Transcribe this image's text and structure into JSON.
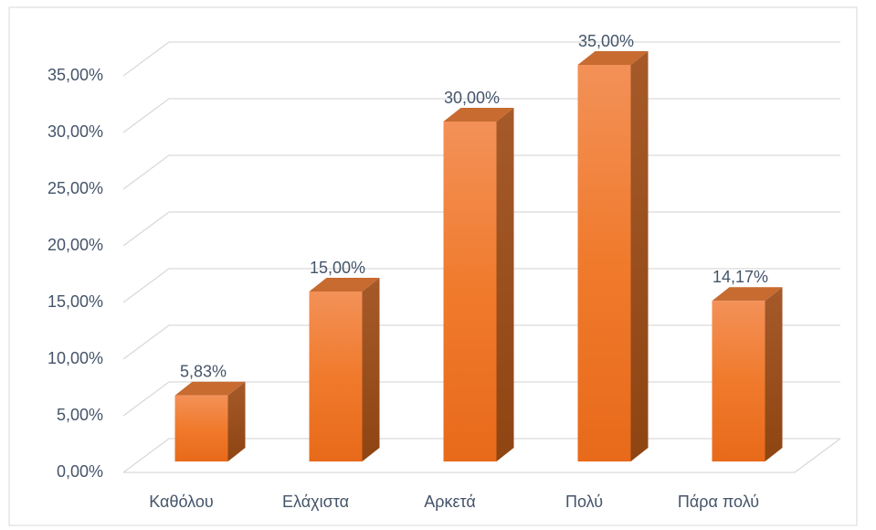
{
  "chart_data": {
    "type": "bar",
    "categories": [
      "Καθόλου",
      "Ελάχιστα",
      "Αρκετά",
      "Πολύ",
      "Πάρα πολύ"
    ],
    "values": [
      5.83,
      15,
      30,
      35,
      14.17
    ],
    "value_labels": [
      "5,83%",
      "15,00%",
      "30,00%",
      "35,00%",
      "14,17%"
    ],
    "color": "#f07a2c",
    "ylim": [
      0,
      35
    ],
    "yticks": [
      {
        "value": 0,
        "label": "0,00%"
      },
      {
        "value": 5,
        "label": "5,00%"
      },
      {
        "value": 10,
        "label": "10,00%"
      },
      {
        "value": 15,
        "label": "15,00%"
      },
      {
        "value": 20,
        "label": "20,00%"
      },
      {
        "value": 25,
        "label": "25,00%"
      },
      {
        "value": 30,
        "label": "30,00%"
      },
      {
        "value": 35,
        "label": "35,00%"
      }
    ],
    "grid": true
  }
}
